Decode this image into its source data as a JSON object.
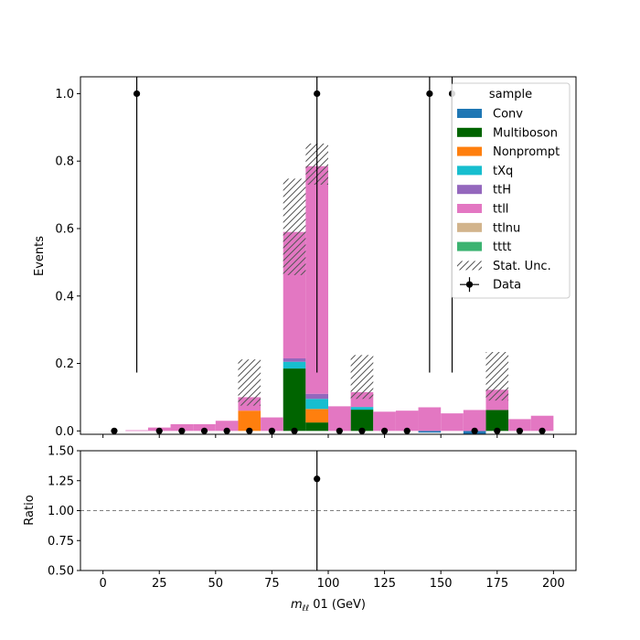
{
  "chart_data": [
    {
      "type": "bar",
      "stacked": true,
      "ylabel": "Events",
      "xlim": [
        -10,
        210
      ],
      "ylim": [
        -0.01,
        1.05
      ],
      "yticks": [
        0.0,
        0.2,
        0.4,
        0.6,
        0.8,
        1.0
      ],
      "ytick_labels": [
        "0.0",
        "0.2",
        "0.4",
        "0.6",
        "0.8",
        "1.0"
      ],
      "bin_edges": [
        0,
        10,
        20,
        30,
        40,
        50,
        60,
        70,
        80,
        90,
        100,
        110,
        120,
        130,
        140,
        150,
        160,
        170,
        180,
        190,
        200
      ],
      "colors": {
        "Conv": "#1f77b4",
        "Multiboson": "#006400",
        "Nonprompt": "#ff7f0e",
        "tXq": "#17becf",
        "ttH": "#9467bd",
        "ttll": "#e377c2",
        "ttlnu": "#d2b48c",
        "tttt": "#3cb371"
      },
      "series": [
        {
          "name": "Conv",
          "values": [
            0,
            0,
            0,
            0,
            0,
            0,
            0,
            0,
            0,
            0,
            0,
            0,
            0,
            0,
            -0.005,
            0,
            -0.01,
            0,
            0,
            0
          ]
        },
        {
          "name": "Multiboson",
          "values": [
            0,
            0,
            0,
            0,
            0,
            0,
            0,
            0,
            0.185,
            0.025,
            0,
            0.063,
            0,
            0,
            0,
            0,
            0,
            0.062,
            0,
            0
          ]
        },
        {
          "name": "Nonprompt",
          "values": [
            0,
            0,
            0,
            0,
            0,
            0,
            0.06,
            0,
            0,
            0.04,
            0,
            0,
            0,
            0,
            0,
            0,
            0,
            0,
            0,
            0
          ]
        },
        {
          "name": "tXq",
          "values": [
            0,
            0,
            0,
            0,
            0,
            0,
            0,
            0,
            0.02,
            0.03,
            0,
            0.008,
            0,
            0,
            0,
            0,
            0,
            0,
            0,
            0
          ]
        },
        {
          "name": "ttH",
          "values": [
            0,
            0,
            0,
            0,
            0,
            0,
            0,
            0,
            0.01,
            0.015,
            0,
            0,
            0,
            0,
            0,
            0,
            0,
            0,
            0,
            0
          ]
        },
        {
          "name": "ttll",
          "values": [
            0,
            0.002,
            0.01,
            0.02,
            0.02,
            0.03,
            0.04,
            0.04,
            0.375,
            0.675,
            0.073,
            0.044,
            0.057,
            0.06,
            0.07,
            0.052,
            0.062,
            0.06,
            0.035,
            0.045
          ]
        },
        {
          "name": "ttlnu",
          "values": [
            0,
            0,
            0,
            0,
            0,
            0,
            0,
            0,
            0,
            0,
            0,
            0,
            0,
            0,
            0,
            0,
            0,
            0,
            0,
            0
          ]
        },
        {
          "name": "tttt",
          "values": [
            0,
            0,
            0,
            0,
            0,
            0,
            0,
            0,
            0,
            0,
            0,
            0,
            0,
            0,
            0,
            0,
            0,
            0,
            0,
            0
          ]
        }
      ],
      "stat_unc": {
        "label": "Stat. Unc.",
        "lo": [
          0,
          0,
          0,
          0,
          0,
          0,
          0.075,
          0,
          0.462,
          0.73,
          0,
          0.095,
          0,
          0,
          0,
          0,
          0,
          0.09,
          0,
          0
        ],
        "hi": [
          0,
          0,
          0,
          0,
          0,
          0,
          0.212,
          0,
          0.748,
          0.852,
          0,
          0.225,
          0,
          0,
          0,
          0,
          0,
          0.234,
          0,
          0
        ]
      },
      "data": {
        "name": "Data",
        "x": [
          5,
          15,
          25,
          35,
          45,
          55,
          65,
          75,
          85,
          95,
          105,
          115,
          125,
          135,
          145,
          155,
          165,
          175,
          185,
          195
        ],
        "y": [
          0,
          1,
          0,
          0,
          0,
          0,
          0,
          0,
          0,
          1,
          0,
          0,
          0,
          0,
          1,
          1,
          0,
          0,
          0,
          0
        ],
        "yerr_lo": [
          0,
          0.827,
          0,
          0,
          0,
          0,
          0,
          0,
          0,
          0.827,
          0,
          0,
          0,
          0,
          0.827,
          0.827,
          0,
          0,
          0,
          0
        ],
        "yerr_hi": [
          0,
          2.3,
          0,
          0,
          0,
          0,
          0,
          0,
          0,
          2.3,
          0,
          0,
          0,
          0,
          2.3,
          2.3,
          0,
          0,
          0,
          0
        ]
      },
      "legend": {
        "title": "sample",
        "placement": "upper right",
        "entries": [
          "Conv",
          "Multiboson",
          "Nonprompt",
          "tXq",
          "ttH",
          "ttll",
          "ttlnu",
          "tttt",
          "Stat. Unc.",
          "Data"
        ]
      }
    },
    {
      "type": "scatter",
      "ylabel": "Ratio",
      "xlabel_math": "m",
      "xlabel_sub": "ℓℓ",
      "xlabel_rest": " 01 (GeV)",
      "xlim": [
        -10,
        210
      ],
      "ylim": [
        0.5,
        1.5
      ],
      "xticks": [
        0,
        25,
        50,
        75,
        100,
        125,
        150,
        175,
        200
      ],
      "xtick_labels": [
        "0",
        "25",
        "50",
        "75",
        "100",
        "125",
        "150",
        "175",
        "200"
      ],
      "yticks": [
        0.5,
        0.75,
        1.0,
        1.25,
        1.5
      ],
      "ytick_labels": [
        "0.50",
        "0.75",
        "1.00",
        "1.25",
        "1.50"
      ],
      "reference_line": 1.0,
      "points": [
        {
          "x": 95,
          "y": 1.265,
          "yerr_lo": 1.05,
          "yerr_hi": 2.9
        }
      ]
    }
  ]
}
